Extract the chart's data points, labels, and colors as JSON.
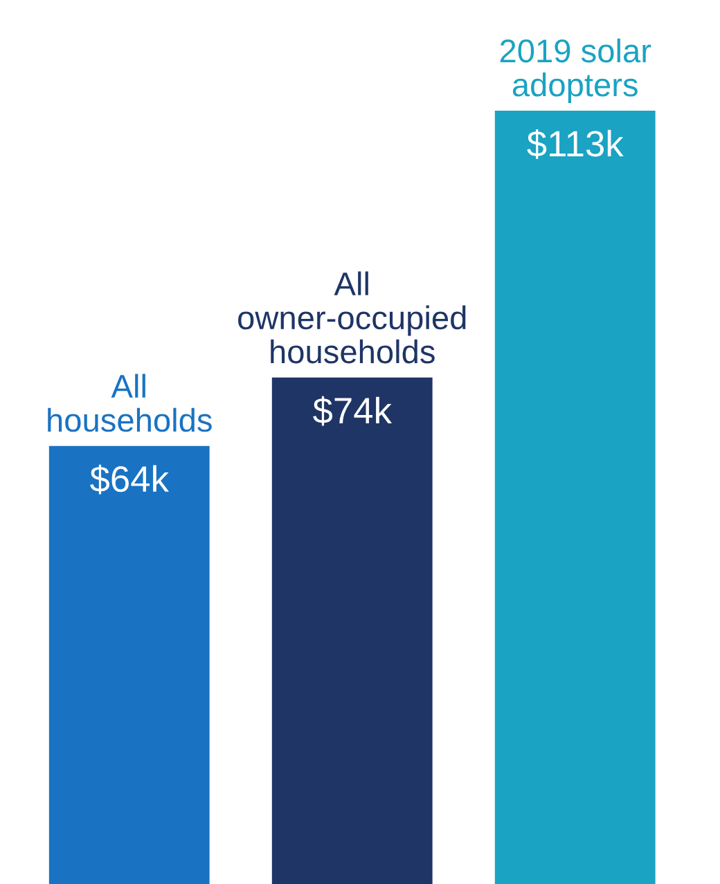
{
  "chart_data": {
    "type": "bar",
    "categories": [
      "All\nhouseholds",
      "All\nowner-occupied\nhouseholds",
      "2019 solar\nadopters"
    ],
    "values": [
      64,
      74,
      113
    ],
    "colors": [
      "#1a73c2",
      "#1f3566",
      "#1aa3c2"
    ],
    "value_labels": [
      "$64k",
      "$74k",
      "$113k"
    ],
    "legend": false
  }
}
